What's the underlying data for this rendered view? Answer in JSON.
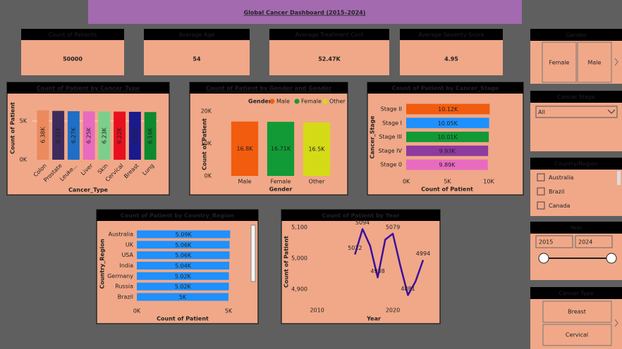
{
  "header": {
    "title": "Global Cancer Dashboard (2015–2024)"
  },
  "kpis": [
    {
      "label": "Count of Patients",
      "value": "50000"
    },
    {
      "label": "Average Age",
      "value": "54"
    },
    {
      "label": "Average Treatment Cost",
      "value": "52.47K"
    },
    {
      "label": "Average Severity Score",
      "value": "4.95"
    }
  ],
  "slicers": {
    "gender": {
      "title": "Gender",
      "options": [
        "Female",
        "Male"
      ]
    },
    "cancer_stage": {
      "title": "Cancer Stage",
      "selected": "All"
    },
    "country": {
      "title": "Country/Region",
      "options": [
        "Australia",
        "Brazil",
        "Canada"
      ]
    },
    "year": {
      "title": "Year",
      "from": "2015",
      "to": "2024"
    },
    "cancer_type": {
      "title": "Cancer Type",
      "options": [
        "Breast",
        "Cervical"
      ]
    }
  },
  "chart_data": [
    {
      "type": "bar",
      "title": "Count of Patient by Cancer_Type",
      "x_label": "Cancer_Type",
      "y_label": "Count of Patient",
      "categories": [
        "Colon",
        "Prostate",
        "Leuke...",
        "Liver",
        "Skin",
        "Cervical",
        "Breast",
        "Lung"
      ],
      "values": [
        6380,
        6310,
        6270,
        6250,
        6230,
        6220,
        6190,
        6160
      ],
      "value_labels": [
        "6.38K",
        "6.31K",
        "6.27K",
        "6.25K",
        "6.23K",
        "6.22K",
        "6.19K",
        "6.16K"
      ],
      "colors": [
        "#ec8a5e",
        "#3d2b5e",
        "#1f6fc6",
        "#e86bbf",
        "#7ccf8a",
        "#e8101e",
        "#1a1a8c",
        "#0e8a2e"
      ],
      "ylim": [
        0,
        7000
      ],
      "yticks": [
        {
          "value": 0,
          "label": "0K"
        },
        {
          "value": 5000,
          "label": "5K"
        }
      ],
      "grid": true
    },
    {
      "type": "bar",
      "title": "Count of Patient by Gender and Gender",
      "legend_title": "Gender",
      "legend": "top",
      "x_label": "Gender",
      "y_label": "Count of Patient",
      "categories": [
        "Male",
        "Female",
        "Other"
      ],
      "values": [
        16800,
        16710,
        16500
      ],
      "value_labels": [
        "16.8K",
        "16.71K",
        "16.5K"
      ],
      "colors": [
        "#f25c0f",
        "#119a35",
        "#d4db16"
      ],
      "ylim": [
        0,
        20000
      ],
      "yticks": [
        {
          "value": 0,
          "label": "0K"
        },
        {
          "value": 10000,
          "label": "10K"
        },
        {
          "value": 20000,
          "label": "20K"
        }
      ]
    },
    {
      "type": "hbar",
      "title": "Count of Patient by Cancer_Stage",
      "x_label": "Count of Patient",
      "y_label": "Cancer_Stage",
      "categories": [
        "Stage II",
        "Stage I",
        "Stage III",
        "Stage IV",
        "Stage 0"
      ],
      "values": [
        10120,
        10050,
        10010,
        9930,
        9890
      ],
      "value_labels": [
        "10.12K",
        "10.05K",
        "10.01K",
        "9.93K",
        "9.89K"
      ],
      "colors": [
        "#f25c0f",
        "#1e90ff",
        "#119a35",
        "#8e3a9e",
        "#e86bbf"
      ],
      "xlim": [
        0,
        10000
      ],
      "xticks": [
        {
          "value": 0,
          "label": "0K"
        },
        {
          "value": 5000,
          "label": "5K"
        },
        {
          "value": 10000,
          "label": "10K"
        }
      ]
    },
    {
      "type": "hbar",
      "title": "Count of Patient by Country_Region",
      "x_label": "Count of Patient",
      "y_label": "Country_Region",
      "categories": [
        "Australia",
        "UK",
        "USA",
        "India",
        "Germany",
        "Russia",
        "Brazil"
      ],
      "values": [
        5090,
        5060,
        5060,
        5040,
        5020,
        5020,
        5000
      ],
      "value_labels": [
        "5.09K",
        "5.06K",
        "5.06K",
        "5.04K",
        "5.02K",
        "5.02K",
        "5K"
      ],
      "colors": [
        "#1e90ff",
        "#1e90ff",
        "#1e90ff",
        "#1e90ff",
        "#1e90ff",
        "#1e90ff",
        "#1e90ff"
      ],
      "xlim": [
        0,
        5000
      ],
      "xticks": [
        {
          "value": 0,
          "label": "0K"
        },
        {
          "value": 5000,
          "label": "5K"
        }
      ]
    },
    {
      "type": "line",
      "title": "Count of Patient by Year",
      "x_label": "Year",
      "y_label": "Count of Patient",
      "x": [
        2015,
        2016,
        2017,
        2018,
        2019,
        2020,
        2021,
        2022,
        2023,
        2024
      ],
      "values": [
        5012,
        5094,
        5040,
        4938,
        5060,
        5079,
        4975,
        4881,
        4925,
        4994
      ],
      "value_labels": [
        "5012",
        "5094",
        null,
        "4938",
        null,
        "5079",
        null,
        "4881",
        null,
        "4994"
      ],
      "color": "#3b0fa0",
      "xlim": [
        2009.1,
        2025.4
      ],
      "ylim": [
        4823,
        5111
      ],
      "xticks": [
        2010,
        2020
      ],
      "yticks": [
        {
          "value": 4900,
          "label": "4,900"
        },
        {
          "value": 5000,
          "label": "5,000"
        },
        {
          "value": 5100,
          "label": "5,100"
        }
      ]
    }
  ]
}
